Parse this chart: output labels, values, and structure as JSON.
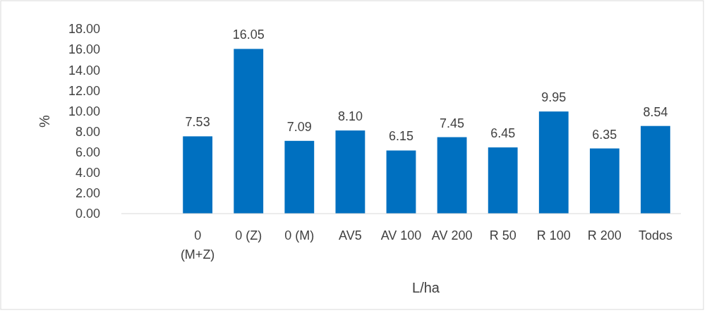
{
  "chart_data": {
    "type": "bar",
    "xlabel": "L/ha",
    "ylabel": "%",
    "categories": [
      null,
      "0 (M+Z)",
      "0 (Z)",
      "0 (M)",
      "AV5",
      "AV 100",
      "AV 200",
      "R 50",
      "R 100",
      "R 200",
      "Todos"
    ],
    "values": [
      null,
      7.53,
      16.05,
      7.09,
      8.1,
      6.15,
      7.45,
      6.45,
      9.95,
      6.35,
      8.54
    ],
    "value_labels": [
      null,
      "7.53",
      "16.05",
      "7.09",
      "8.10",
      "6.15",
      "7.45",
      "6.45",
      "9.95",
      "6.35",
      "8.54"
    ],
    "color": "#0070c0",
    "ylim": [
      0,
      18
    ],
    "yticks": [
      {
        "value": 0,
        "label": "0.00"
      },
      {
        "value": 2,
        "label": "2.00"
      },
      {
        "value": 4,
        "label": "4.00"
      },
      {
        "value": 6,
        "label": "6.00"
      },
      {
        "value": 8,
        "label": "8.00"
      },
      {
        "value": 10,
        "label": "10.00"
      },
      {
        "value": 12,
        "label": "12.00"
      },
      {
        "value": 14,
        "label": "14.00"
      },
      {
        "value": 16,
        "label": "16.00"
      },
      {
        "value": 18,
        "label": "18.00"
      }
    ],
    "grid": false
  }
}
